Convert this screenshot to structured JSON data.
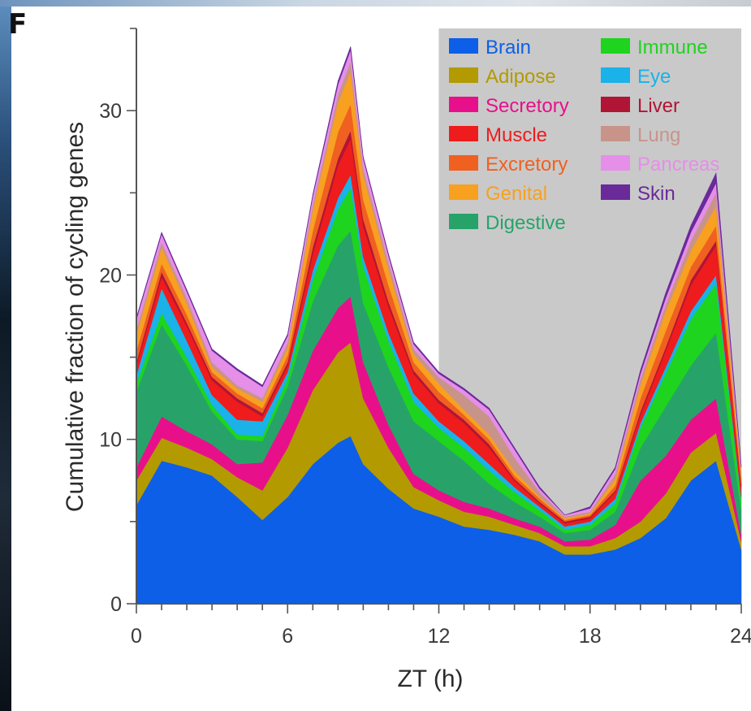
{
  "panel_label": "F",
  "chart_data": {
    "type": "area",
    "stacked": true,
    "xlabel": "ZT (h)",
    "ylabel": "Cumulative fraction of cycling genes",
    "xlim": [
      0,
      24
    ],
    "ylim": [
      0,
      35
    ],
    "x_ticks": [
      0,
      6,
      12,
      18,
      24
    ],
    "y_ticks": [
      0,
      10,
      20,
      30
    ],
    "shaded_region": {
      "x_start": 12,
      "x_end": 24,
      "color": "#c9c9c9"
    },
    "legend_position": "top-right",
    "legend_columns": 2,
    "x": [
      0,
      1,
      2,
      3,
      4,
      5,
      6,
      7,
      8,
      8.5,
      9,
      10,
      11,
      12,
      13,
      14,
      15,
      16,
      17,
      18,
      19,
      20,
      21,
      22,
      23,
      24
    ],
    "series": [
      {
        "name": "Brain",
        "color": "#0d5fe8",
        "values": [
          6,
          8.7,
          8.3,
          7.8,
          6.5,
          5.1,
          6.5,
          8.5,
          9.8,
          10.2,
          8.5,
          7.0,
          5.8,
          5.3,
          4.7,
          4.5,
          4.2,
          3.8,
          3.0,
          3.0,
          3.3,
          4.0,
          5.2,
          7.5,
          8.7,
          3.3
        ]
      },
      {
        "name": "Adipose",
        "color": "#b39a00",
        "values": [
          1.5,
          1.4,
          1.2,
          1.0,
          1.2,
          1.8,
          3.0,
          4.5,
          5.5,
          5.7,
          4.0,
          2.5,
          1.3,
          1.0,
          0.9,
          0.8,
          0.6,
          0.5,
          0.5,
          0.5,
          0.7,
          1.0,
          1.5,
          1.7,
          1.7,
          0.5
        ]
      },
      {
        "name": "Secretory",
        "color": "#e8108a",
        "values": [
          0.8,
          1.3,
          1.0,
          0.9,
          0.8,
          1.7,
          2.0,
          2.4,
          2.7,
          2.8,
          2.2,
          1.4,
          0.8,
          0.6,
          0.6,
          0.5,
          0.4,
          0.4,
          0.3,
          0.4,
          0.8,
          2.5,
          2.3,
          2.0,
          2.1,
          0.4
        ]
      },
      {
        "name": "Digestive",
        "color": "#27a36a",
        "values": [
          4.6,
          5.6,
          4.0,
          2.0,
          1.5,
          1.3,
          1.7,
          3.0,
          3.8,
          4.0,
          3.6,
          3.5,
          3.2,
          3.0,
          2.5,
          1.5,
          1.0,
          0.6,
          0.5,
          0.6,
          0.8,
          2.0,
          3.0,
          3.3,
          4.0,
          1.5
        ]
      },
      {
        "name": "Immune",
        "color": "#1ed41e",
        "values": [
          0.5,
          0.7,
          0.5,
          0.4,
          0.3,
          0.3,
          0.5,
          1.3,
          2.2,
          2.6,
          2.2,
          1.6,
          1.2,
          0.8,
          0.8,
          0.8,
          0.6,
          0.4,
          0.2,
          0.3,
          0.5,
          1.2,
          2.0,
          2.8,
          3.0,
          0.6
        ]
      },
      {
        "name": "Eye",
        "color": "#1ab2e8",
        "values": [
          0.5,
          1.5,
          1.0,
          0.6,
          0.9,
          0.9,
          0.4,
          0.6,
          0.7,
          0.8,
          0.6,
          0.5,
          0.5,
          0.4,
          0.4,
          0.4,
          0.3,
          0.2,
          0.2,
          0.2,
          0.3,
          0.3,
          0.4,
          0.5,
          0.5,
          0.2
        ]
      },
      {
        "name": "Muscle",
        "color": "#ee1c1c",
        "values": [
          0.6,
          0.7,
          0.9,
          0.9,
          1.1,
          0.3,
          0.4,
          1.0,
          2.0,
          2.2,
          1.9,
          1.6,
          1.2,
          1.1,
          1.1,
          1.0,
          0.4,
          0.2,
          0.2,
          0.2,
          0.4,
          0.5,
          1.0,
          1.6,
          1.8,
          0.7
        ]
      },
      {
        "name": "Liver",
        "color": "#b01536",
        "values": [
          0.2,
          0.3,
          0.2,
          0.2,
          0.2,
          0.2,
          0.2,
          0.4,
          0.4,
          0.5,
          0.4,
          0.3,
          0.2,
          0.2,
          0.2,
          0.2,
          0.1,
          0.1,
          0.1,
          0.1,
          0.1,
          0.2,
          0.2,
          0.3,
          0.3,
          0.1
        ]
      },
      {
        "name": "Excretory",
        "color": "#f06020",
        "values": [
          0.7,
          0.5,
          0.5,
          0.3,
          0.3,
          0.3,
          0.4,
          1.0,
          1.6,
          1.6,
          1.2,
          1.0,
          0.5,
          0.5,
          0.3,
          0.3,
          0.2,
          0.2,
          0.1,
          0.1,
          0.3,
          0.8,
          1.0,
          0.8,
          0.9,
          0.3
        ]
      },
      {
        "name": "Genital",
        "color": "#f8a020",
        "values": [
          1.0,
          1.0,
          0.7,
          0.3,
          0.3,
          0.4,
          0.5,
          1.3,
          1.8,
          2.0,
          1.5,
          1.0,
          0.5,
          0.5,
          0.3,
          0.3,
          0.3,
          0.1,
          0.1,
          0.1,
          0.4,
          0.8,
          1.2,
          1.0,
          1.2,
          0.3
        ]
      },
      {
        "name": "Lung",
        "color": "#c8948a",
        "values": [
          0.3,
          0.3,
          0.3,
          0.3,
          0.2,
          0.2,
          0.3,
          0.3,
          0.5,
          0.6,
          0.4,
          0.4,
          0.3,
          0.4,
          0.9,
          1.1,
          0.8,
          0.3,
          0.1,
          0.1,
          0.3,
          0.4,
          0.4,
          0.6,
          0.8,
          0.2
        ]
      },
      {
        "name": "Pancreas",
        "color": "#e58fe8",
        "values": [
          0.6,
          0.5,
          0.4,
          0.7,
          0.9,
          0.7,
          0.4,
          0.5,
          0.6,
          0.7,
          0.6,
          0.4,
          0.3,
          0.2,
          0.3,
          0.4,
          0.5,
          0.2,
          0.1,
          0.2,
          0.3,
          0.3,
          0.4,
          0.5,
          0.6,
          0.2
        ]
      },
      {
        "name": "Skin",
        "color": "#6a2a9a",
        "values": [
          0.1,
          0.1,
          0.1,
          0.1,
          0.1,
          0.1,
          0.1,
          0.1,
          0.2,
          0.2,
          0.1,
          0.1,
          0.1,
          0.1,
          0.1,
          0.1,
          0.1,
          0.1,
          0.0,
          0.1,
          0.1,
          0.2,
          0.3,
          0.4,
          0.6,
          0.1
        ]
      }
    ],
    "legend": {
      "column1": [
        "Brain",
        "Adipose",
        "Secretory",
        "Muscle",
        "Excretory",
        "Genital",
        "Digestive"
      ],
      "column2": [
        "Immune",
        "Eye",
        "Liver",
        "Lung",
        "Pancreas",
        "Skin"
      ]
    }
  }
}
